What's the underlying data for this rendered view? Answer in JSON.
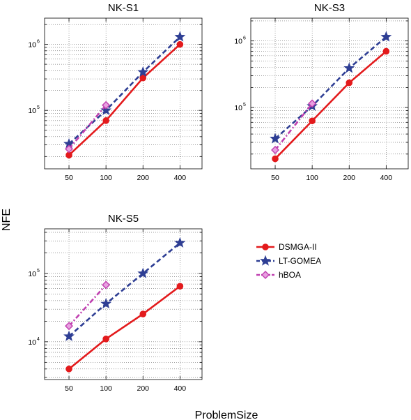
{
  "figure": {
    "ylabel": "NFE",
    "xlabel": "ProblemSize"
  },
  "legend": {
    "entries": [
      {
        "name": "DSMGA-II",
        "color": "#e31a1c",
        "marker": "circle",
        "dash": "solid"
      },
      {
        "name": "LT-GOMEA",
        "color": "#2e3e94",
        "marker": "star",
        "dash": "dashed"
      },
      {
        "name": "hBOA",
        "color": "#c040b0",
        "marker": "diamond",
        "dash": "dashdot"
      }
    ]
  },
  "chart_data": [
    {
      "type": "line",
      "title": "NK-S1",
      "x": [
        50,
        100,
        200,
        400
      ],
      "xticks": [
        "50",
        "100",
        "200",
        "400"
      ],
      "yscale": "log",
      "ylim": [
        13000,
        2500000
      ],
      "yticks": [
        {
          "base": "10",
          "exp": "5",
          "value": 100000
        },
        {
          "base": "10",
          "exp": "6",
          "value": 1000000
        }
      ],
      "series": [
        {
          "name": "DSMGA-II",
          "x": [
            50,
            100,
            200,
            400
          ],
          "values": [
            21000,
            70000,
            310000,
            1000000
          ]
        },
        {
          "name": "LT-GOMEA",
          "x": [
            50,
            100,
            200,
            400
          ],
          "values": [
            31000,
            100000,
            380000,
            1300000
          ]
        },
        {
          "name": "hBOA",
          "x": [
            50,
            100
          ],
          "values": [
            26000,
            120000
          ]
        }
      ]
    },
    {
      "type": "line",
      "title": "NK-S3",
      "x": [
        50,
        100,
        200,
        400
      ],
      "xticks": [
        "50",
        "100",
        "200",
        "400"
      ],
      "yscale": "log",
      "ylim": [
        12000,
        2200000
      ],
      "yticks": [
        {
          "base": "10",
          "exp": "5",
          "value": 100000
        },
        {
          "base": "10",
          "exp": "6",
          "value": 1000000
        }
      ],
      "series": [
        {
          "name": "DSMGA-II",
          "x": [
            50,
            100,
            200,
            400
          ],
          "values": [
            17000,
            63000,
            235000,
            700000
          ]
        },
        {
          "name": "LT-GOMEA",
          "x": [
            50,
            100,
            200,
            400
          ],
          "values": [
            34000,
            105000,
            390000,
            1150000
          ]
        },
        {
          "name": "hBOA",
          "x": [
            50,
            100
          ],
          "values": [
            23000,
            115000
          ]
        }
      ]
    },
    {
      "type": "line",
      "title": "NK-S5",
      "x": [
        50,
        100,
        200,
        400
      ],
      "xticks": [
        "50",
        "100",
        "200",
        "400"
      ],
      "yscale": "log",
      "ylim": [
        2800,
        450000
      ],
      "yticks": [
        {
          "base": "10",
          "exp": "4",
          "value": 10000
        },
        {
          "base": "10",
          "exp": "5",
          "value": 100000
        }
      ],
      "series": [
        {
          "name": "DSMGA-II",
          "x": [
            50,
            100,
            200,
            400
          ],
          "values": [
            4000,
            11000,
            25500,
            65000
          ]
        },
        {
          "name": "LT-GOMEA",
          "x": [
            50,
            100,
            200,
            400
          ],
          "values": [
            12000,
            36000,
            100000,
            280000
          ]
        },
        {
          "name": "hBOA",
          "x": [
            50,
            100
          ],
          "values": [
            17000,
            68000
          ]
        }
      ]
    }
  ]
}
